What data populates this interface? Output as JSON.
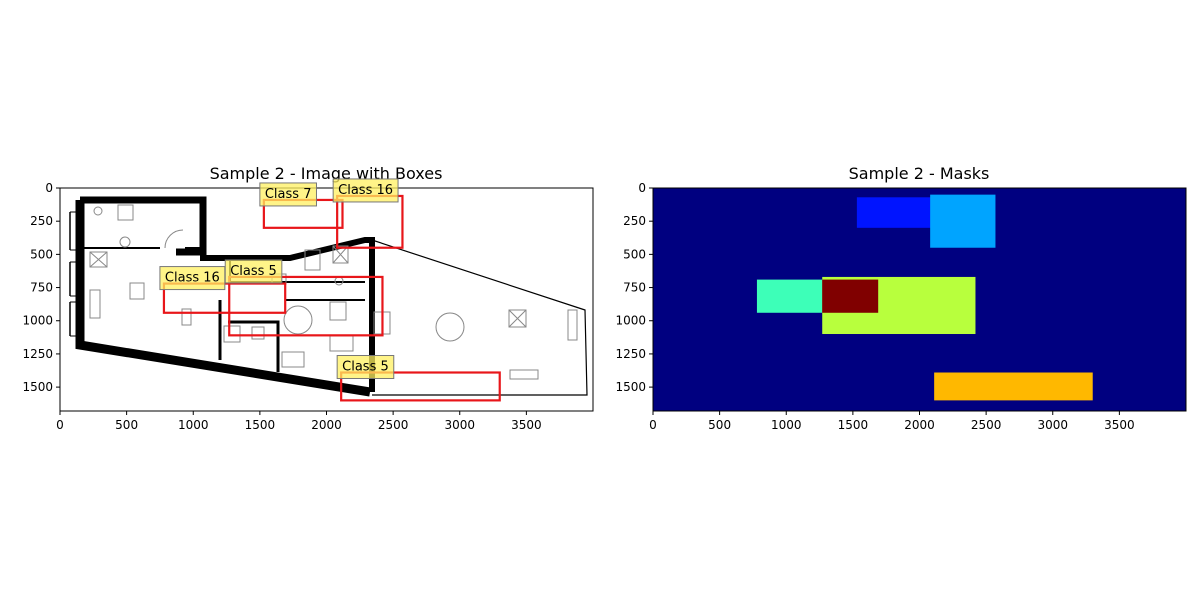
{
  "chart_data": [
    {
      "type": "image-with-boxes",
      "title": "Sample 2 - Image with Boxes",
      "xlim": [
        0,
        4000
      ],
      "ylim": [
        1680,
        0
      ],
      "xticks": [
        0,
        500,
        1000,
        1500,
        2000,
        2500,
        3000,
        3500
      ],
      "yticks": [
        0,
        250,
        500,
        750,
        1000,
        1250,
        1500
      ],
      "boxes": [
        {
          "label": "Class 7",
          "x0": 1530,
          "y0": 90,
          "x1": 2120,
          "y1": 300
        },
        {
          "label": "Class 16",
          "x0": 2080,
          "y0": 60,
          "x1": 2570,
          "y1": 450
        },
        {
          "label": "Class 16",
          "x0": 780,
          "y0": 720,
          "x1": 1690,
          "y1": 940
        },
        {
          "label": "Class 5",
          "x0": 1270,
          "y0": 670,
          "x1": 2420,
          "y1": 1110
        },
        {
          "label": "Class 5",
          "x0": 2110,
          "y0": 1390,
          "x1": 3300,
          "y1": 1600
        }
      ],
      "colors": {
        "box": "#e8161a",
        "label_bg": "#fff060"
      }
    },
    {
      "type": "heatmap",
      "title": "Sample 2 - Masks",
      "xlim": [
        0,
        4000
      ],
      "ylim": [
        1680,
        0
      ],
      "xticks": [
        0,
        500,
        1000,
        1500,
        2000,
        2500,
        3000,
        3500
      ],
      "yticks": [
        0,
        250,
        500,
        750,
        1000,
        1250,
        1500
      ],
      "background": "#000080",
      "regions": [
        {
          "x0": 1530,
          "y0": 70,
          "x1": 2120,
          "y1": 300,
          "color": "#0014ff"
        },
        {
          "x0": 2080,
          "y0": 50,
          "x1": 2570,
          "y1": 450,
          "color": "#00a4ff"
        },
        {
          "x0": 780,
          "y0": 690,
          "x1": 1270,
          "y1": 940,
          "color": "#3dffb8"
        },
        {
          "x0": 1270,
          "y0": 670,
          "x1": 2420,
          "y1": 1100,
          "color": "#b8ff3d"
        },
        {
          "x0": 1270,
          "y0": 690,
          "x1": 1690,
          "y1": 940,
          "color": "#800000"
        },
        {
          "x0": 2110,
          "y0": 1390,
          "x1": 3300,
          "y1": 1600,
          "color": "#ffb800"
        }
      ]
    }
  ]
}
